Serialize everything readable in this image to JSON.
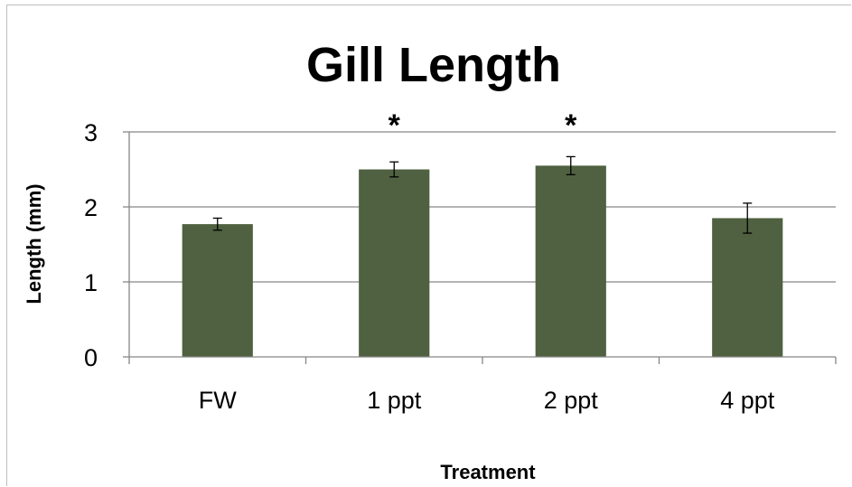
{
  "chart_data": {
    "type": "bar",
    "title": "Gill Length",
    "xlabel": "Treatment",
    "ylabel": "Length (mm)",
    "categories": [
      "FW",
      "1 ppt",
      "2 ppt",
      "4 ppt"
    ],
    "values": [
      1.77,
      2.5,
      2.55,
      1.85
    ],
    "error": [
      0.08,
      0.1,
      0.12,
      0.2
    ],
    "annotations": [
      "",
      "*",
      "*",
      ""
    ],
    "ylim": [
      0,
      3
    ],
    "yticks": [
      0,
      1,
      2,
      3
    ],
    "grid": true,
    "legend": "none",
    "bar_color": "#4f6140",
    "grid_color": "#878787",
    "axis_color": "#878787"
  }
}
